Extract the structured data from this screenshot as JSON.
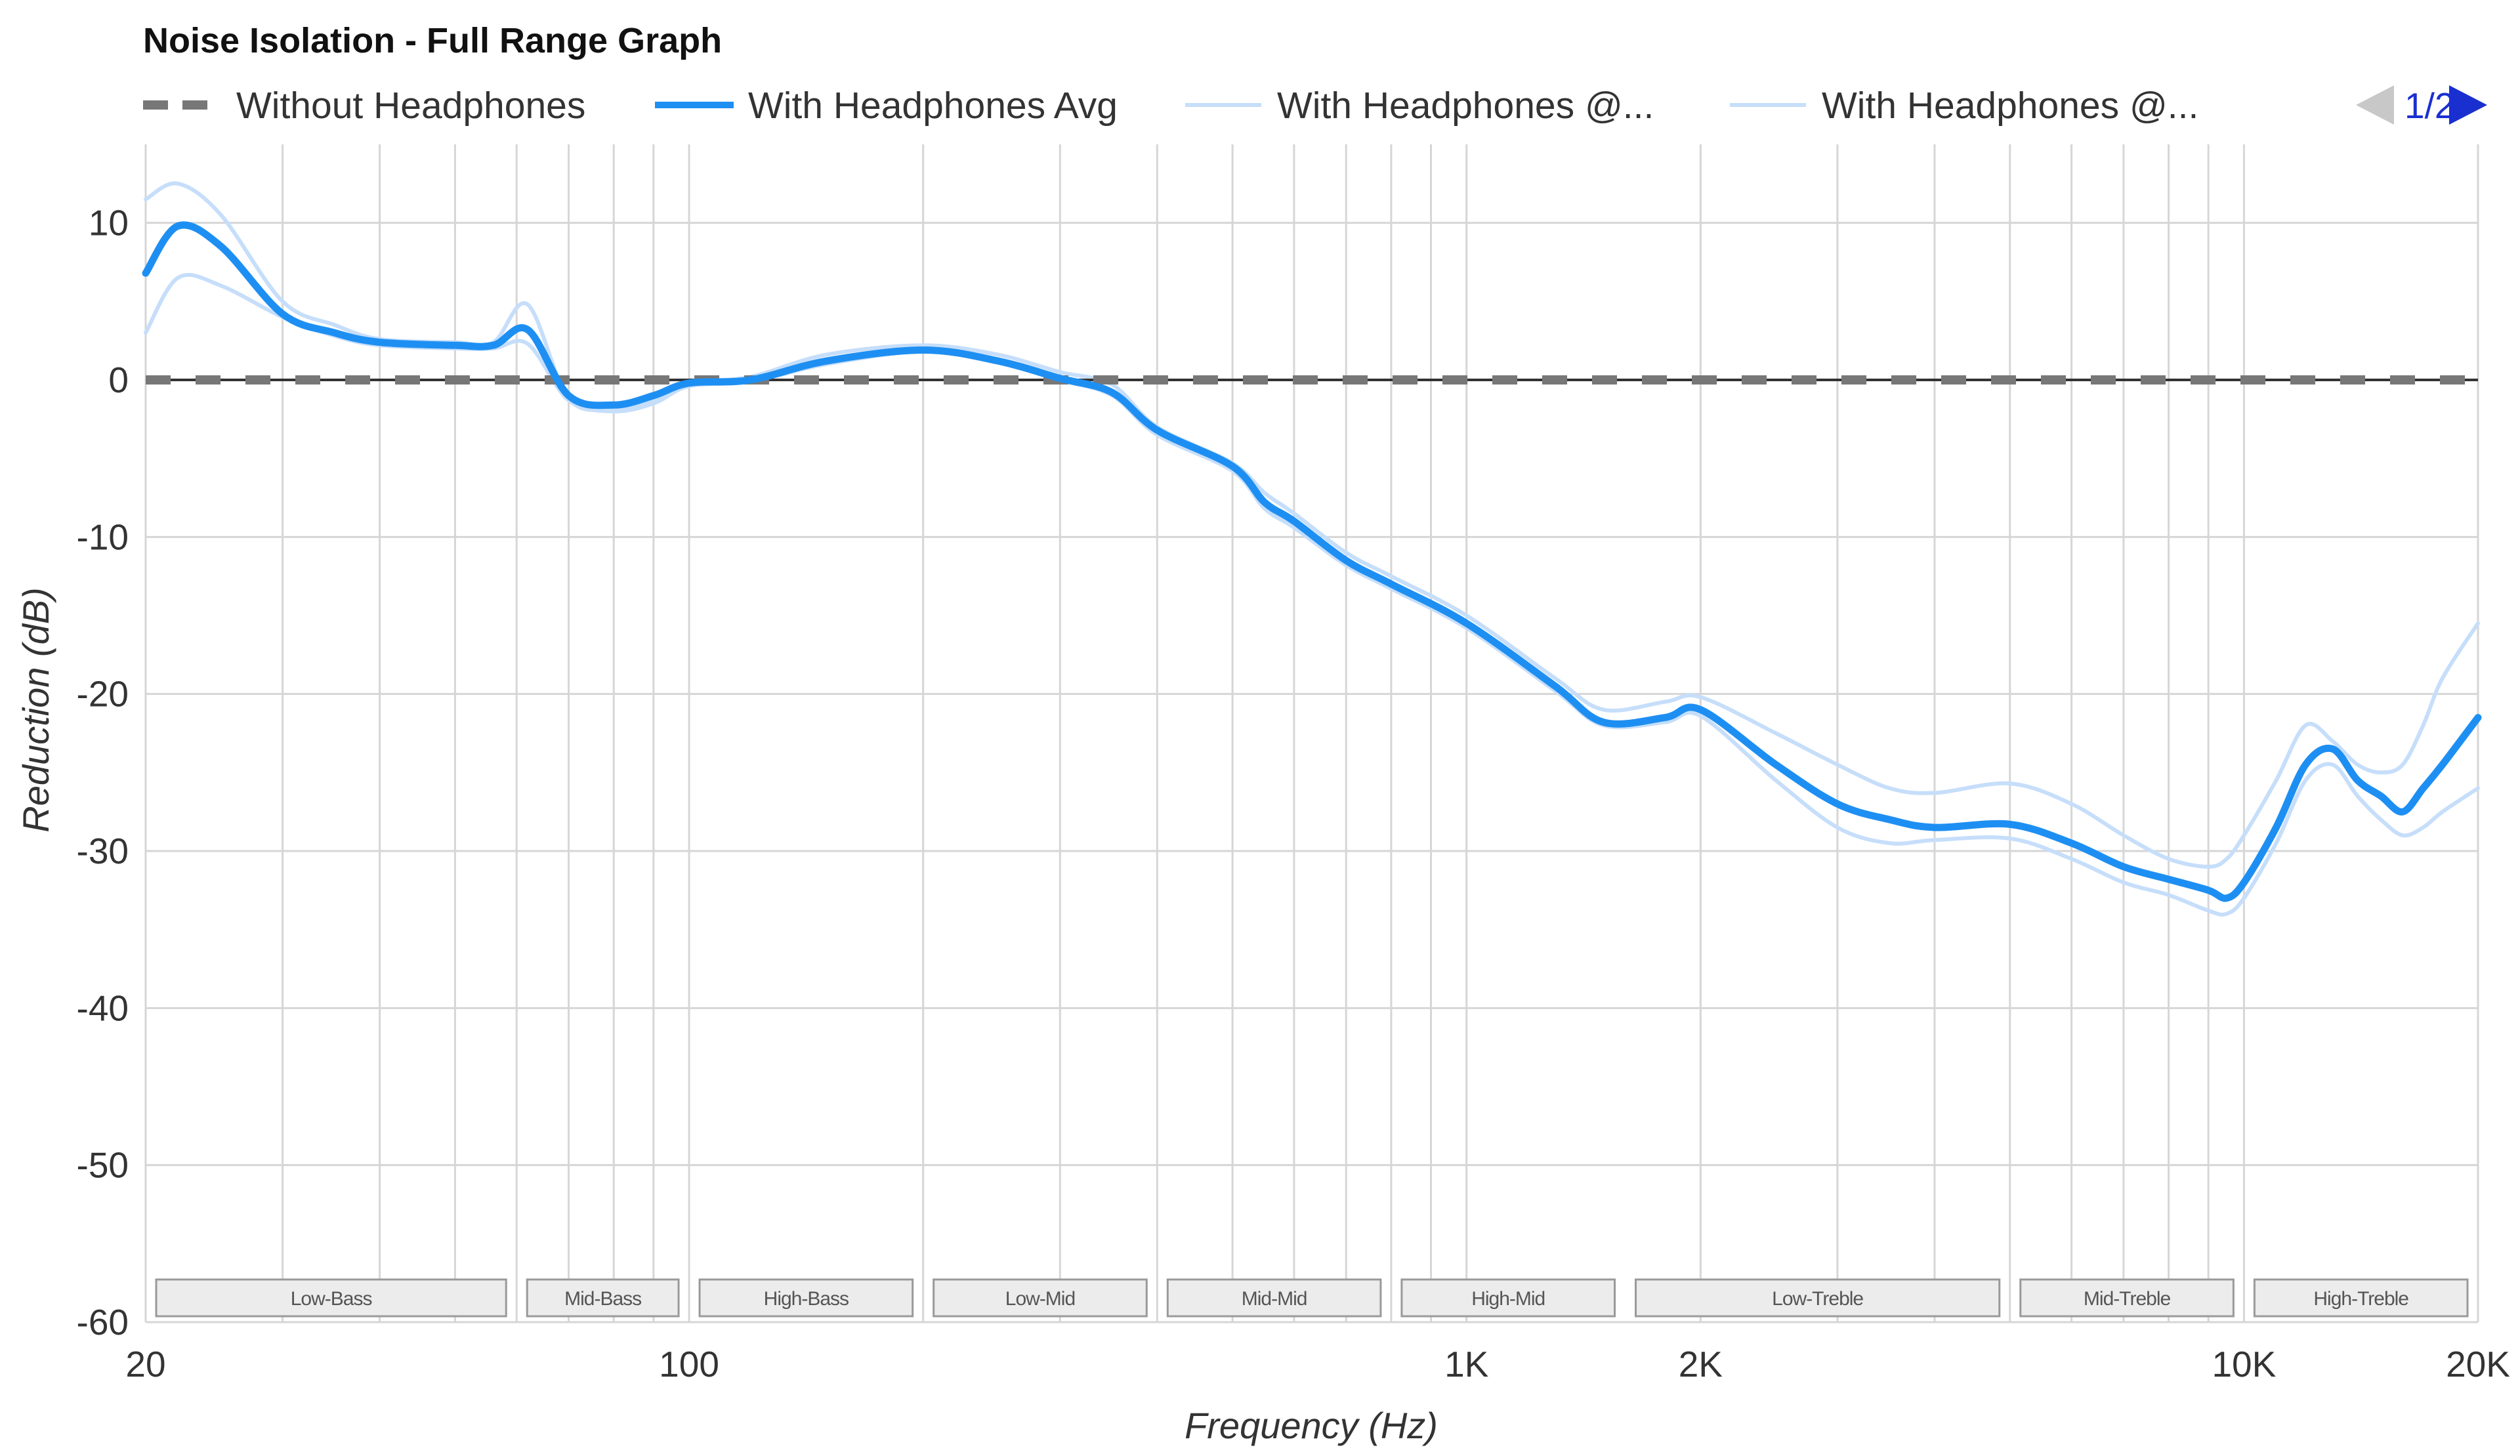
{
  "chart_data": {
    "type": "line",
    "title": "Noise Isolation - Full Range Graph",
    "xlabel": "Frequency (Hz)",
    "ylabel": "Reduction (dB)",
    "x_scale": "log",
    "xlim": [
      20,
      20000
    ],
    "ylim": [
      -60,
      15
    ],
    "x_ticks": [
      {
        "value": 20,
        "label": "20"
      },
      {
        "value": 100,
        "label": "100"
      },
      {
        "value": 1000,
        "label": "1K"
      },
      {
        "value": 2000,
        "label": "2K"
      },
      {
        "value": 10000,
        "label": "10K"
      },
      {
        "value": 20000,
        "label": "20K"
      }
    ],
    "y_ticks": [
      {
        "value": 10,
        "label": "10"
      },
      {
        "value": 0,
        "label": "0"
      },
      {
        "value": -10,
        "label": "-10"
      },
      {
        "value": -20,
        "label": "-20"
      },
      {
        "value": -30,
        "label": "-30"
      },
      {
        "value": -40,
        "label": "-40"
      },
      {
        "value": -50,
        "label": "-50"
      },
      {
        "value": -60,
        "label": "-60"
      }
    ],
    "grid": true,
    "legend": {
      "position": "top",
      "pager": {
        "label": "1/2",
        "prev_color": "#c8c8c8",
        "next_color": "#1a2fd0"
      }
    },
    "bands": [
      {
        "label": "Low-Bass",
        "from": 20,
        "to": 60
      },
      {
        "label": "Mid-Bass",
        "from": 60,
        "to": 100
      },
      {
        "label": "High-Bass",
        "from": 100,
        "to": 200
      },
      {
        "label": "Low-Mid",
        "from": 200,
        "to": 400
      },
      {
        "label": "Mid-Mid",
        "from": 400,
        "to": 800
      },
      {
        "label": "High-Mid",
        "from": 800,
        "to": 1600
      },
      {
        "label": "Low-Treble",
        "from": 1600,
        "to": 5000
      },
      {
        "label": "Mid-Treble",
        "from": 5000,
        "to": 10000
      },
      {
        "label": "High-Treble",
        "from": 10000,
        "to": 20000
      }
    ],
    "series": [
      {
        "name": "Without Headphones",
        "color": "#777777",
        "style": "dashed",
        "x": [
          20,
          20000
        ],
        "y": [
          0,
          0
        ]
      },
      {
        "name": "With Headphones @...",
        "color": "#c6defa",
        "style": "thin",
        "x": [
          20,
          22,
          25,
          30,
          35,
          40,
          50,
          56,
          62,
          70,
          80,
          90,
          100,
          120,
          150,
          200,
          250,
          300,
          350,
          400,
          500,
          550,
          600,
          700,
          800,
          1000,
          1300,
          1500,
          1800,
          2000,
          2500,
          3000,
          3500,
          4000,
          5000,
          6000,
          7000,
          8000,
          9000,
          9500,
          10000,
          11000,
          12000,
          13000,
          14000,
          15000,
          16000,
          17000,
          18000,
          20000
        ],
        "y": [
          11.5,
          12.5,
          10.5,
          5.0,
          3.5,
          2.6,
          2.4,
          2.4,
          4.8,
          -1.2,
          -1.8,
          -1.3,
          -0.2,
          0.2,
          1.6,
          2.2,
          1.6,
          0.5,
          -0.3,
          -3.0,
          -5.3,
          -7.2,
          -8.5,
          -11.0,
          -12.5,
          -15.0,
          -19.0,
          -21.0,
          -20.5,
          -20.2,
          -22.5,
          -24.5,
          -26.0,
          -26.3,
          -25.7,
          -27.0,
          -29.0,
          -30.5,
          -31.0,
          -30.5,
          -29.0,
          -25.5,
          -22.0,
          -23.0,
          -24.5,
          -25.0,
          -24.5,
          -22.0,
          -19.0,
          -15.5
        ]
      },
      {
        "name": "With Headphones Avg",
        "color": "#1e8ff2",
        "style": "bold",
        "x": [
          20,
          22,
          25,
          30,
          35,
          40,
          50,
          56,
          62,
          70,
          80,
          90,
          100,
          120,
          150,
          200,
          250,
          300,
          350,
          400,
          500,
          550,
          600,
          700,
          800,
          1000,
          1300,
          1500,
          1800,
          2000,
          2500,
          3000,
          3500,
          4000,
          5000,
          6000,
          7000,
          8000,
          9000,
          9500,
          10000,
          11000,
          12000,
          13000,
          14000,
          15000,
          16000,
          17000,
          18000,
          20000
        ],
        "y": [
          6.8,
          9.8,
          8.5,
          4.2,
          3.0,
          2.4,
          2.2,
          2.2,
          3.2,
          -1.0,
          -1.6,
          -1.0,
          -0.2,
          0.0,
          1.2,
          1.9,
          1.2,
          0.1,
          -0.8,
          -3.2,
          -5.5,
          -7.8,
          -9.0,
          -11.5,
          -13.0,
          -15.5,
          -19.5,
          -21.8,
          -21.5,
          -21.0,
          -24.5,
          -27.0,
          -28.0,
          -28.5,
          -28.3,
          -29.5,
          -31.0,
          -31.8,
          -32.5,
          -33.0,
          -32.0,
          -28.5,
          -24.5,
          -23.5,
          -25.5,
          -26.5,
          -27.5,
          -26.0,
          -24.5,
          -21.5
        ]
      },
      {
        "name": "With Headphones @...",
        "color": "#c6defa",
        "style": "thin",
        "x": [
          20,
          22,
          25,
          30,
          35,
          40,
          50,
          56,
          62,
          70,
          80,
          90,
          100,
          120,
          150,
          200,
          250,
          300,
          350,
          400,
          500,
          550,
          600,
          700,
          800,
          1000,
          1300,
          1500,
          1800,
          2000,
          2500,
          3000,
          3500,
          4000,
          5000,
          6000,
          7000,
          8000,
          9000,
          9500,
          10000,
          11000,
          12000,
          13000,
          14000,
          15000,
          16000,
          17000,
          18000,
          20000
        ],
        "y": [
          3.0,
          6.5,
          6.0,
          4.0,
          2.8,
          2.2,
          2.0,
          2.0,
          2.3,
          -1.3,
          -2.0,
          -1.5,
          -0.4,
          -0.1,
          1.0,
          1.8,
          1.1,
          0.0,
          -1.0,
          -3.5,
          -5.8,
          -8.2,
          -9.4,
          -11.8,
          -13.3,
          -15.8,
          -19.8,
          -22.0,
          -21.8,
          -21.4,
          -25.5,
          -28.5,
          -29.5,
          -29.3,
          -29.2,
          -30.5,
          -32.0,
          -32.8,
          -33.8,
          -34.0,
          -33.0,
          -29.5,
          -25.5,
          -24.5,
          -26.5,
          -28.0,
          -29.0,
          -28.5,
          -27.5,
          -26.0
        ]
      }
    ]
  },
  "legend_items": [
    {
      "label": "Without Headphones"
    },
    {
      "label": "With Headphones Avg"
    },
    {
      "label": "With Headphones @..."
    },
    {
      "label": "With Headphones @..."
    }
  ]
}
